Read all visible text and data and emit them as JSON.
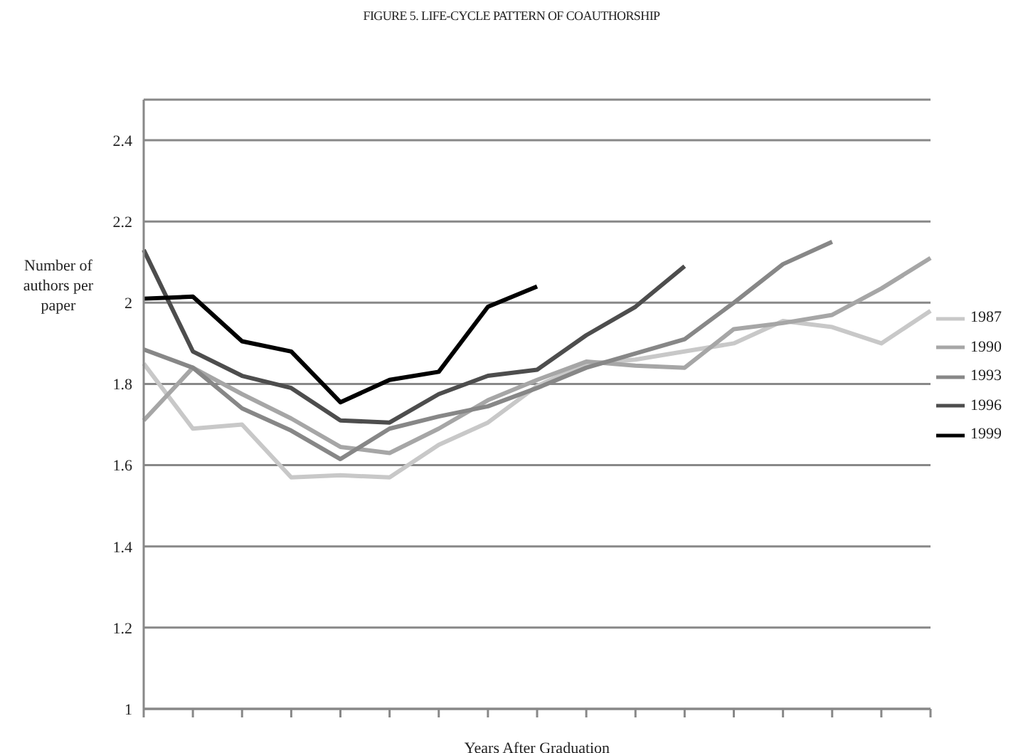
{
  "chart_data": {
    "type": "line",
    "title": "FIGURE 5.  LIFE-CYCLE PATTERN OF COAUTHORSHIP",
    "xlabel": "Years After Graduation",
    "ylabel": "Number of authors per paper",
    "categories": [
      null,
      null,
      null,
      null,
      null,
      null,
      null,
      null,
      null,
      null,
      null,
      null,
      null,
      null,
      null,
      null,
      null
    ],
    "series": [
      {
        "name": "1987",
        "color": "#c8c8c8",
        "values": [
          1.85,
          1.69,
          1.7,
          1.57,
          1.575,
          1.57,
          1.65,
          1.705,
          1.795,
          1.85,
          1.86,
          1.88,
          1.9,
          1.955,
          1.94,
          1.9,
          1.98
        ]
      },
      {
        "name": "1990",
        "color": "#a6a6a6",
        "values": [
          1.71,
          1.84,
          1.775,
          1.715,
          1.645,
          1.63,
          1.69,
          1.76,
          1.81,
          1.855,
          1.845,
          1.84,
          1.935,
          1.95,
          1.97,
          2.035,
          2.11
        ]
      },
      {
        "name": "1993",
        "color": "#878787",
        "values": [
          1.885,
          1.84,
          1.74,
          1.685,
          1.615,
          1.69,
          1.72,
          1.745,
          1.79,
          1.84,
          1.875,
          1.91,
          2.0,
          2.095,
          2.15,
          null,
          null
        ]
      },
      {
        "name": "1996",
        "color": "#4d4d4d",
        "values": [
          2.13,
          1.88,
          1.82,
          1.79,
          1.71,
          1.705,
          1.775,
          1.82,
          1.835,
          1.92,
          1.99,
          2.09,
          null,
          null,
          null,
          null,
          null
        ]
      },
      {
        "name": "1999",
        "color": "#000000",
        "values": [
          2.01,
          2.015,
          1.905,
          1.88,
          1.755,
          1.81,
          1.83,
          1.99,
          2.04,
          null,
          null,
          null,
          null,
          null,
          null,
          null,
          null
        ]
      }
    ],
    "ylim": [
      1,
      2.5
    ],
    "yticks": [
      1,
      1.2,
      1.4,
      1.6,
      1.8,
      2,
      2.2,
      2.4
    ],
    "grid": "y",
    "legend": "right",
    "marker": "none",
    "line_style": "solid"
  }
}
